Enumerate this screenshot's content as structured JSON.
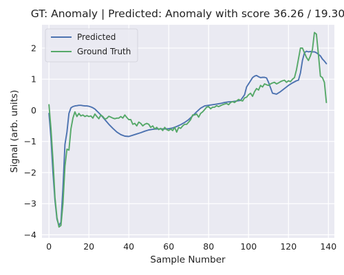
{
  "chart_data": {
    "type": "line",
    "title": "GT: Anomaly | Predicted: Anomaly with score 36.26 / 19.30",
    "xlabel": "Sample Number",
    "ylabel": "Signal (arb. units)",
    "xlim": [
      -3.5,
      143
    ],
    "ylim": [
      -4.1,
      2.75
    ],
    "xticks": [
      0,
      20,
      40,
      60,
      80,
      100,
      120,
      140
    ],
    "yticks": [
      -4,
      -3,
      -2,
      -1,
      0,
      1,
      2
    ],
    "grid": true,
    "legend_position": "top-left",
    "series": [
      {
        "name": "Predicted",
        "color": "#4c72b0",
        "x": [
          0,
          1,
          2,
          3,
          4,
          5,
          6,
          7,
          8,
          9,
          10,
          11,
          12,
          13,
          14,
          15,
          16,
          17,
          18,
          19,
          20,
          21,
          22,
          23,
          24,
          26,
          28,
          30,
          32,
          34,
          36,
          38,
          40,
          42,
          44,
          46,
          48,
          50,
          52,
          54,
          56,
          58,
          60,
          62,
          64,
          66,
          68,
          70,
          72,
          74,
          76,
          78,
          80,
          82,
          84,
          86,
          88,
          90,
          92,
          94,
          96,
          98,
          99,
          100,
          101,
          102,
          103,
          104,
          105,
          106,
          107,
          108,
          109,
          110,
          112,
          114,
          116,
          118,
          120,
          122,
          124,
          125,
          126,
          127,
          128,
          129,
          130,
          131,
          132,
          133,
          134,
          135,
          136,
          137,
          138,
          139
        ],
        "y": [
          -0.1,
          -0.9,
          -2.0,
          -2.9,
          -3.5,
          -3.7,
          -3.6,
          -2.5,
          -1.1,
          -0.7,
          -0.1,
          0.08,
          0.12,
          0.14,
          0.15,
          0.16,
          0.16,
          0.15,
          0.14,
          0.14,
          0.13,
          0.11,
          0.08,
          0.04,
          -0.02,
          -0.15,
          -0.3,
          -0.45,
          -0.58,
          -0.7,
          -0.78,
          -0.83,
          -0.84,
          -0.8,
          -0.76,
          -0.72,
          -0.67,
          -0.63,
          -0.61,
          -0.6,
          -0.6,
          -0.6,
          -0.59,
          -0.57,
          -0.52,
          -0.46,
          -0.39,
          -0.3,
          -0.18,
          -0.05,
          0.07,
          0.14,
          0.16,
          0.18,
          0.2,
          0.22,
          0.25,
          0.27,
          0.28,
          0.3,
          0.32,
          0.5,
          0.75,
          0.85,
          0.95,
          1.05,
          1.1,
          1.12,
          1.08,
          1.05,
          1.06,
          1.06,
          1.04,
          0.9,
          0.55,
          0.52,
          0.6,
          0.7,
          0.8,
          0.88,
          0.95,
          0.97,
          1.2,
          1.6,
          1.85,
          1.9,
          1.88,
          1.89,
          1.88,
          1.88,
          1.85,
          1.8,
          1.75,
          1.65,
          1.58,
          1.5
        ]
      },
      {
        "name": "Ground Truth",
        "color": "#55a868",
        "x": [
          0,
          1,
          2,
          3,
          4,
          5,
          6,
          7,
          8,
          9,
          10,
          11,
          12,
          13,
          14,
          15,
          16,
          17,
          18,
          19,
          20,
          21,
          22,
          23,
          24,
          25,
          26,
          27,
          28,
          29,
          30,
          31,
          32,
          33,
          34,
          35,
          36,
          37,
          38,
          39,
          40,
          41,
          42,
          43,
          44,
          45,
          46,
          47,
          48,
          49,
          50,
          51,
          52,
          53,
          54,
          55,
          56,
          57,
          58,
          59,
          60,
          61,
          62,
          63,
          64,
          65,
          66,
          67,
          68,
          69,
          70,
          71,
          72,
          73,
          74,
          75,
          76,
          77,
          78,
          79,
          80,
          81,
          82,
          83,
          84,
          85,
          86,
          87,
          88,
          89,
          90,
          91,
          92,
          93,
          94,
          95,
          96,
          97,
          98,
          99,
          100,
          101,
          102,
          103,
          104,
          105,
          106,
          107,
          108,
          109,
          110,
          111,
          112,
          113,
          114,
          115,
          116,
          117,
          118,
          119,
          120,
          121,
          122,
          123,
          124,
          125,
          126,
          127,
          128,
          129,
          130,
          131,
          132,
          133,
          134,
          135,
          136,
          137,
          138,
          139
        ],
        "y": [
          0.18,
          -0.6,
          -1.6,
          -2.8,
          -3.45,
          -3.75,
          -3.7,
          -3.0,
          -1.8,
          -1.25,
          -1.28,
          -0.6,
          -0.25,
          -0.05,
          -0.2,
          -0.1,
          -0.18,
          -0.15,
          -0.2,
          -0.17,
          -0.2,
          -0.18,
          -0.25,
          -0.12,
          -0.2,
          -0.27,
          -0.15,
          -0.2,
          -0.28,
          -0.26,
          -0.19,
          -0.22,
          -0.25,
          -0.27,
          -0.25,
          -0.25,
          -0.2,
          -0.25,
          -0.15,
          -0.23,
          -0.3,
          -0.3,
          -0.45,
          -0.42,
          -0.5,
          -0.38,
          -0.42,
          -0.5,
          -0.45,
          -0.42,
          -0.45,
          -0.55,
          -0.5,
          -0.6,
          -0.55,
          -0.62,
          -0.58,
          -0.65,
          -0.55,
          -0.62,
          -0.65,
          -0.6,
          -0.65,
          -0.55,
          -0.7,
          -0.55,
          -0.58,
          -0.5,
          -0.45,
          -0.45,
          -0.38,
          -0.3,
          -0.15,
          -0.15,
          -0.12,
          -0.22,
          -0.1,
          -0.05,
          0.02,
          0.1,
          0.12,
          0.05,
          0.1,
          0.1,
          0.15,
          0.12,
          0.15,
          0.18,
          0.2,
          0.22,
          0.18,
          0.25,
          0.28,
          0.25,
          0.3,
          0.35,
          0.32,
          0.3,
          0.4,
          0.42,
          0.5,
          0.55,
          0.45,
          0.6,
          0.7,
          0.65,
          0.8,
          0.75,
          0.85,
          0.82,
          0.8,
          0.85,
          0.88,
          0.9,
          0.85,
          0.88,
          0.92,
          0.95,
          0.97,
          0.9,
          0.95,
          0.92,
          1.0,
          1.05,
          1.3,
          1.65,
          2.0,
          2.0,
          1.85,
          1.7,
          1.6,
          1.75,
          1.95,
          2.5,
          2.45,
          1.8,
          1.1,
          1.05,
          0.9,
          0.25
        ]
      }
    ]
  }
}
